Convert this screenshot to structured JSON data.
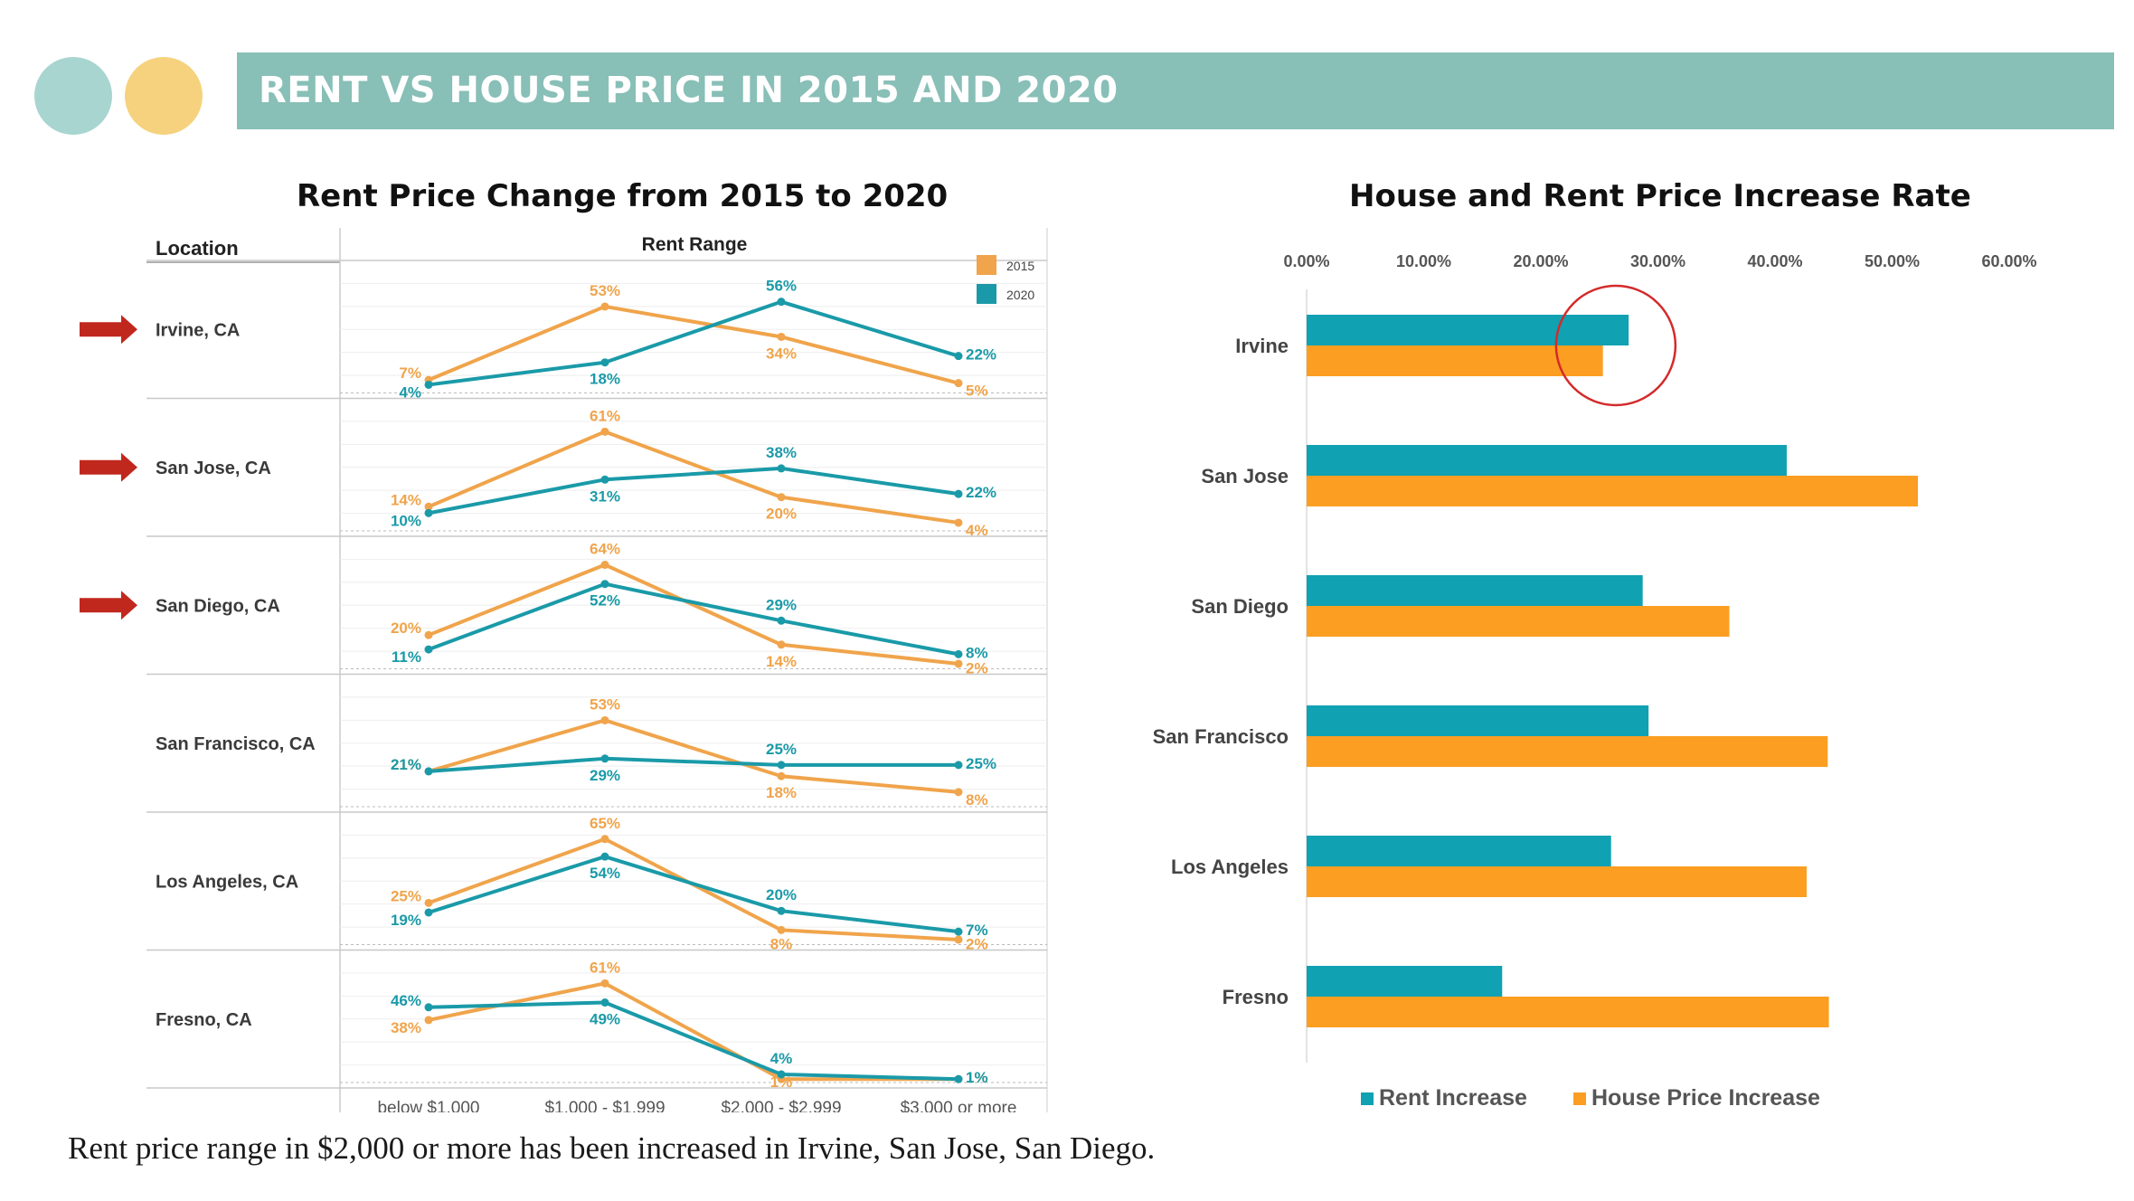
{
  "header": {
    "title": "RENT VS HOUSE PRICE IN 2015 AND 2020",
    "decor_colors": [
      "#a8d5d0",
      "#f6d27e"
    ]
  },
  "left_chart": {
    "title": "Rent Price Change from 2015 to 2020",
    "location_header": "Location",
    "range_header": "Rent Range"
  },
  "right_chart": {
    "title": "House and Rent Price Increase Rate"
  },
  "caption": "Rent price range in $2,000  or more has been increased in Irvine, San Jose, San Diego.",
  "chart_data": [
    {
      "type": "line",
      "title": "Rent Price Change from 2015 to 2020",
      "xlabel": "Rent Range",
      "categories": [
        "below $1,000",
        "$1,000 - $1,999",
        "$2,000 - $2,999",
        "$3,000 or more"
      ],
      "legend": [
        {
          "name": "2015",
          "color": "#f0a44b"
        },
        {
          "name": "2020",
          "color": "#1a9aa8"
        }
      ],
      "legend_position": "top-right",
      "panels": [
        {
          "location": "Irvine, CA",
          "highlighted": true,
          "series": [
            {
              "name": "2015",
              "values": [
                7,
                53,
                34,
                5
              ],
              "labels": [
                "7%",
                "53%",
                "34%",
                "5%"
              ]
            },
            {
              "name": "2020",
              "values": [
                4,
                18,
                56,
                22
              ],
              "labels": [
                "4%",
                "18%",
                "56%",
                "22%"
              ]
            }
          ]
        },
        {
          "location": "San Jose, CA",
          "highlighted": true,
          "series": [
            {
              "name": "2015",
              "values": [
                14,
                61,
                20,
                4
              ],
              "labels": [
                "14%",
                "61%",
                "20%",
                "4%"
              ]
            },
            {
              "name": "2020",
              "values": [
                10,
                31,
                38,
                22
              ],
              "labels": [
                "10%",
                "31%",
                "38%",
                "22%"
              ]
            }
          ]
        },
        {
          "location": "San Diego, CA",
          "highlighted": true,
          "series": [
            {
              "name": "2015",
              "values": [
                20,
                64,
                14,
                2
              ],
              "labels": [
                "20%",
                "64%",
                "14%",
                "2%"
              ]
            },
            {
              "name": "2020",
              "values": [
                11,
                52,
                29,
                8
              ],
              "labels": [
                "11%",
                "52%",
                "29%",
                "8%"
              ]
            }
          ]
        },
        {
          "location": "San Francisco, CA",
          "highlighted": false,
          "series": [
            {
              "name": "2015",
              "values": [
                21,
                53,
                18,
                8
              ],
              "labels": [
                "21%",
                "53%",
                "18%",
                "8%"
              ]
            },
            {
              "name": "2020",
              "values": [
                21,
                29,
                25,
                25
              ],
              "labels": [
                "21%",
                "29%",
                "25%",
                "25%"
              ]
            }
          ]
        },
        {
          "location": "Los Angeles, CA",
          "highlighted": false,
          "series": [
            {
              "name": "2015",
              "values": [
                25,
                65,
                8,
                2
              ],
              "labels": [
                "25%",
                "65%",
                "8%",
                "2%"
              ]
            },
            {
              "name": "2020",
              "values": [
                19,
                54,
                20,
                7
              ],
              "labels": [
                "19%",
                "54%",
                "20%",
                "7%"
              ]
            }
          ]
        },
        {
          "location": "Fresno, CA",
          "highlighted": false,
          "series": [
            {
              "name": "2015",
              "values": [
                38,
                61,
                1,
                1
              ],
              "labels": [
                "38%",
                "61%",
                "1%",
                "1%"
              ]
            },
            {
              "name": "2020",
              "values": [
                46,
                49,
                4,
                1
              ],
              "labels": [
                "46%",
                "49%",
                "4%",
                "1%"
              ]
            }
          ]
        }
      ]
    },
    {
      "type": "bar",
      "orientation": "horizontal",
      "title": "House and Rent Price Increase Rate",
      "categories": [
        "Irvine",
        "San Jose",
        "San Diego",
        "San Francisco",
        "Los Angeles",
        "Fresno"
      ],
      "xlim": [
        0,
        60
      ],
      "xticks": [
        "0.00%",
        "10.00%",
        "20.00%",
        "30.00%",
        "40.00%",
        "50.00%",
        "60.00%"
      ],
      "series": [
        {
          "name": "Rent Increase",
          "color": "#10a1b2",
          "values": [
            27.5,
            41,
            28.7,
            29.2,
            26,
            16.7
          ]
        },
        {
          "name": "House Price Increase",
          "color": "#fb9e21",
          "values": [
            25.3,
            52.2,
            36.1,
            44.5,
            42.7,
            44.6
          ]
        }
      ],
      "legend_position": "bottom",
      "annotation": {
        "type": "circle",
        "target": "Irvine",
        "color": "#d42a2a"
      }
    }
  ]
}
